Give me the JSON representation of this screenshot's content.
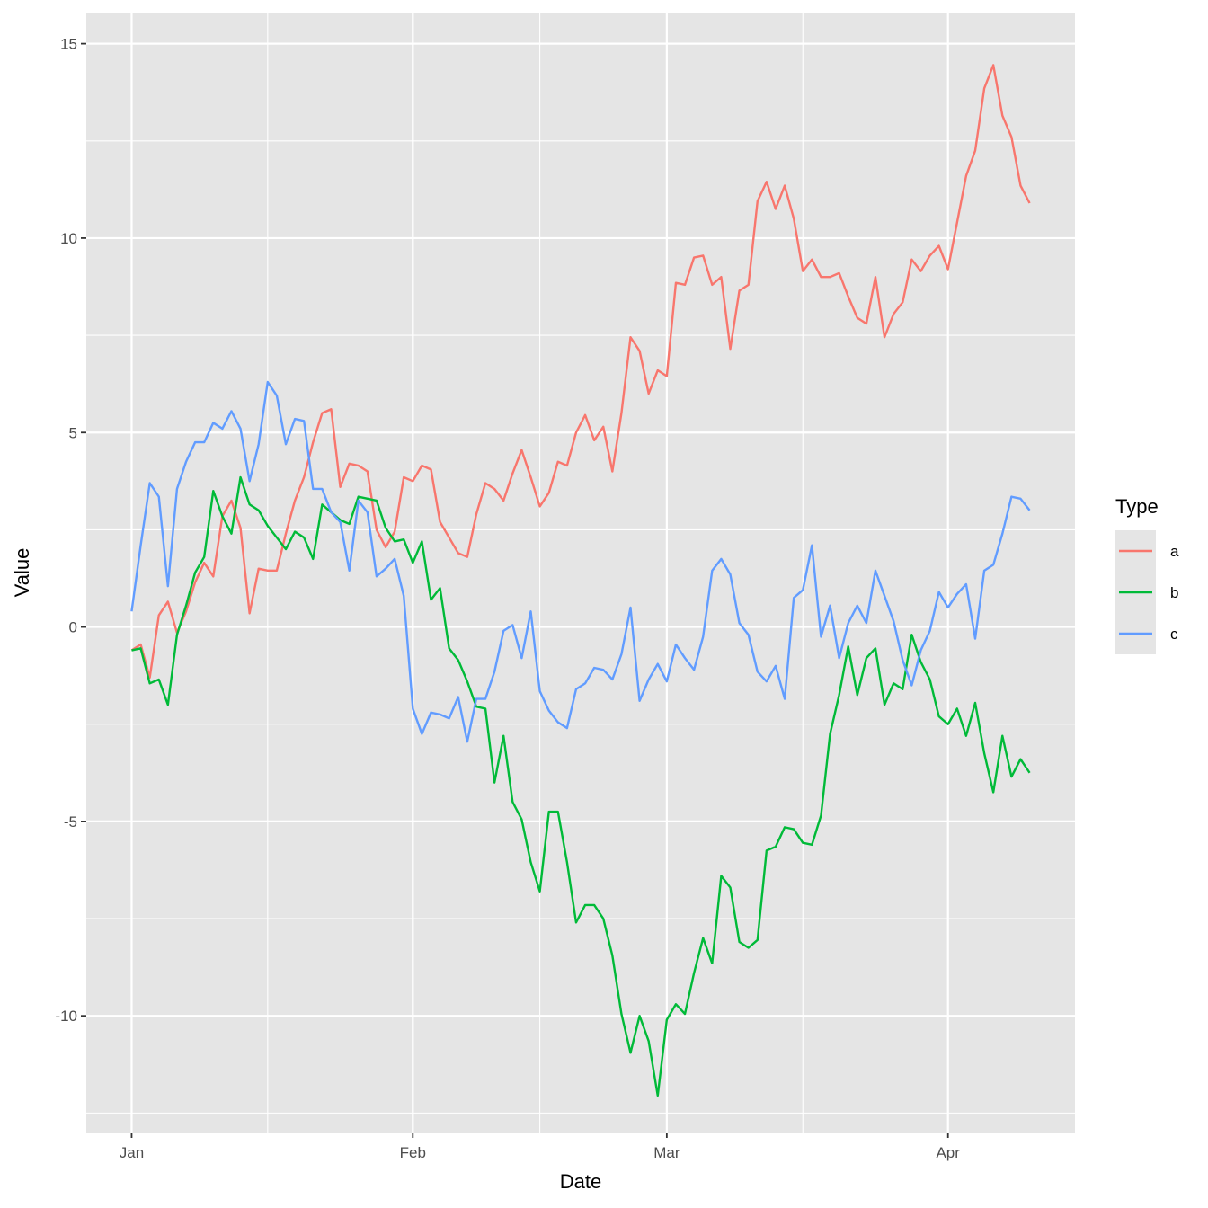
{
  "chart_data": {
    "type": "line",
    "title": "",
    "xlabel": "Date",
    "ylabel": "Value",
    "x_start": "2023-01-01",
    "x_end": "2023-04-10",
    "xlim": [
      "2022-12-27",
      "2023-04-15"
    ],
    "ylim": [
      -13.0,
      15.8
    ],
    "x_ticks": [
      {
        "label": "Jan",
        "date": "2023-01-01"
      },
      {
        "label": "Feb",
        "date": "2023-02-01"
      },
      {
        "label": "Mar",
        "date": "2023-03-01"
      },
      {
        "label": "Apr",
        "date": "2023-04-01"
      }
    ],
    "x_minor_ticks": [
      "2023-01-16",
      "2023-02-15",
      "2023-03-16"
    ],
    "y_ticks": [
      15,
      10,
      5,
      0,
      -5,
      -10
    ],
    "y_tick_labels": [
      "15",
      "10",
      "5",
      "0",
      "-5",
      "-10"
    ],
    "y_minor_ticks": [
      12.5,
      7.5,
      2.5,
      -2.5,
      -7.5,
      -12.5
    ],
    "grid": true,
    "legend": {
      "title": "Type",
      "position": "right"
    },
    "panel_background": "#e5e5e5",
    "grid_color": "#ffffff",
    "series": [
      {
        "name": "a",
        "color": "#f8766d",
        "values": [
          -0.6,
          -0.45,
          -1.3,
          0.3,
          0.65,
          -0.15,
          0.4,
          1.15,
          1.65,
          1.3,
          2.85,
          3.25,
          2.55,
          0.35,
          1.5,
          1.45,
          1.45,
          2.4,
          3.25,
          3.85,
          4.75,
          5.5,
          5.6,
          3.6,
          4.2,
          4.15,
          4.0,
          2.5,
          2.05,
          2.45,
          3.85,
          3.75,
          4.15,
          4.05,
          2.7,
          2.3,
          1.9,
          1.8,
          2.9,
          3.7,
          3.55,
          3.25,
          3.95,
          4.55,
          3.85,
          3.1,
          3.45,
          4.25,
          4.15,
          5.0,
          5.45,
          4.8,
          5.15,
          4.0,
          5.5,
          7.45,
          7.1,
          6.0,
          6.6,
          6.45,
          8.85,
          8.8,
          9.5,
          9.55,
          8.8,
          9.0,
          7.15,
          8.65,
          8.8,
          10.95,
          11.45,
          10.75,
          11.35,
          10.5,
          9.15,
          9.45,
          9.0,
          9.0,
          9.1,
          8.5,
          7.95,
          7.8,
          9.0,
          7.45,
          8.05,
          8.35,
          9.45,
          9.15,
          9.55,
          9.8,
          9.2,
          10.4,
          11.6,
          12.25,
          13.85,
          14.45,
          13.15,
          12.6,
          11.35,
          10.9
        ]
      },
      {
        "name": "b",
        "color": "#00ba38",
        "values": [
          -0.6,
          -0.55,
          -1.45,
          -1.35,
          -2.0,
          -0.2,
          0.55,
          1.4,
          1.8,
          3.5,
          2.85,
          2.4,
          3.85,
          3.15,
          3.0,
          2.6,
          2.3,
          2.0,
          2.45,
          2.3,
          1.75,
          3.15,
          2.95,
          2.75,
          2.65,
          3.35,
          3.3,
          3.25,
          2.55,
          2.2,
          2.25,
          1.65,
          2.2,
          0.7,
          1.0,
          -0.55,
          -0.85,
          -1.4,
          -2.05,
          -2.1,
          -4.0,
          -2.8,
          -4.5,
          -4.95,
          -6.05,
          -6.8,
          -4.75,
          -4.75,
          -6.05,
          -7.6,
          -7.15,
          -7.15,
          -7.5,
          -8.45,
          -9.95,
          -10.95,
          -10.0,
          -10.65,
          -12.05,
          -10.1,
          -9.7,
          -9.95,
          -8.9,
          -8.0,
          -8.65,
          -6.4,
          -6.7,
          -8.1,
          -8.25,
          -8.05,
          -5.75,
          -5.65,
          -5.15,
          -5.2,
          -5.55,
          -5.6,
          -4.85,
          -2.75,
          -1.75,
          -0.5,
          -1.75,
          -0.8,
          -0.55,
          -2.0,
          -1.45,
          -1.6,
          -0.2,
          -0.9,
          -1.35,
          -2.3,
          -2.5,
          -2.1,
          -2.8,
          -1.95,
          -3.25,
          -4.25,
          -2.8,
          -3.85,
          -3.4,
          -3.75
        ]
      },
      {
        "name": "c",
        "color": "#619cff",
        "values": [
          0.4,
          2.1,
          3.7,
          3.35,
          1.05,
          3.55,
          4.25,
          4.75,
          4.75,
          5.25,
          5.1,
          5.55,
          5.1,
          3.75,
          4.7,
          6.3,
          5.95,
          4.7,
          5.35,
          5.3,
          3.55,
          3.55,
          2.95,
          2.7,
          1.45,
          3.25,
          2.95,
          1.3,
          1.5,
          1.75,
          0.8,
          -2.1,
          -2.75,
          -2.2,
          -2.25,
          -2.35,
          -1.8,
          -2.95,
          -1.85,
          -1.85,
          -1.15,
          -0.1,
          0.05,
          -0.8,
          0.4,
          -1.65,
          -2.15,
          -2.45,
          -2.6,
          -1.6,
          -1.45,
          -1.05,
          -1.1,
          -1.35,
          -0.7,
          0.5,
          -1.9,
          -1.35,
          -0.95,
          -1.4,
          -0.45,
          -0.8,
          -1.1,
          -0.25,
          1.45,
          1.75,
          1.35,
          0.1,
          -0.2,
          -1.15,
          -1.4,
          -1.0,
          -1.85,
          0.75,
          0.95,
          2.1,
          -0.25,
          0.55,
          -0.8,
          0.1,
          0.55,
          0.1,
          1.45,
          0.8,
          0.15,
          -0.85,
          -1.5,
          -0.6,
          -0.1,
          0.9,
          0.5,
          0.85,
          1.1,
          -0.3,
          1.45,
          1.6,
          2.4,
          3.35,
          3.3,
          3.0
        ]
      }
    ]
  }
}
